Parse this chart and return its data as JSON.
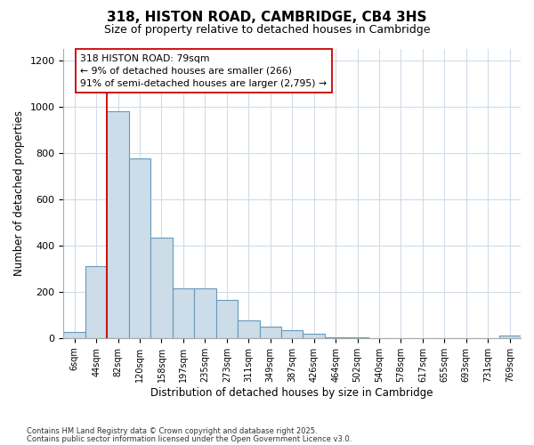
{
  "title1": "318, HISTON ROAD, CAMBRIDGE, CB4 3HS",
  "title2": "Size of property relative to detached houses in Cambridge",
  "xlabel": "Distribution of detached houses by size in Cambridge",
  "ylabel": "Number of detached properties",
  "bin_labels": [
    "6sqm",
    "44sqm",
    "82sqm",
    "120sqm",
    "158sqm",
    "197sqm",
    "235sqm",
    "273sqm",
    "311sqm",
    "349sqm",
    "387sqm",
    "426sqm",
    "464sqm",
    "502sqm",
    "540sqm",
    "578sqm",
    "617sqm",
    "655sqm",
    "693sqm",
    "731sqm",
    "769sqm"
  ],
  "bar_heights": [
    25,
    310,
    980,
    775,
    435,
    215,
    215,
    165,
    75,
    50,
    35,
    20,
    5,
    5,
    0,
    0,
    0,
    0,
    0,
    0,
    12
  ],
  "bar_color": "#ccdce8",
  "bar_edge_color": "#6699bb",
  "red_line_x": 1.5,
  "marker_label_line1": "318 HISTON ROAD: 79sqm",
  "marker_label_line2": "← 9% of detached houses are smaller (266)",
  "marker_label_line3": "91% of semi-detached houses are larger (2,795) →",
  "annotation_box_color": "#ffffff",
  "annotation_border_color": "#cc0000",
  "red_line_color": "#cc0000",
  "footer1": "Contains HM Land Registry data © Crown copyright and database right 2025.",
  "footer2": "Contains public sector information licensed under the Open Government Licence v3.0.",
  "background_color": "#ffffff",
  "plot_bg_color": "#ffffff",
  "grid_color": "#d0dce8",
  "ylim": [
    0,
    1250
  ],
  "yticks": [
    0,
    200,
    400,
    600,
    800,
    1000,
    1200
  ]
}
